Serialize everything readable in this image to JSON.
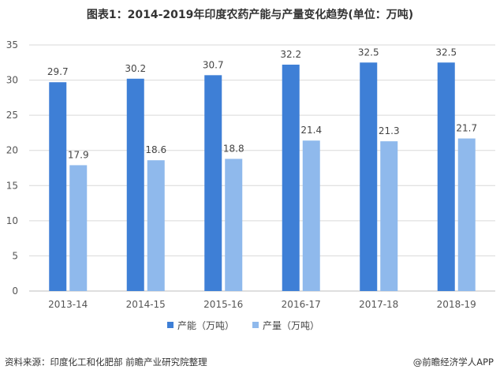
{
  "title": "图表1：2014-2019年印度农药产能与产量变化趋势(单位：万吨)",
  "footer": {
    "source": "资料来源：印度化工和化肥部 前瞻产业研究院整理",
    "brand": "@前瞻经济学人APP"
  },
  "colors": {
    "capacity": "#3e7fd6",
    "output": "#8fb9ec",
    "grid": "#d9d9d9",
    "axis": "#bfbfbf"
  },
  "chart_data": {
    "type": "bar",
    "categories": [
      "2013-14",
      "2014-15",
      "2015-16",
      "2016-17",
      "2017-18",
      "2018-19"
    ],
    "series": [
      {
        "name": "产能（万吨）",
        "values": [
          29.7,
          30.2,
          30.7,
          32.2,
          32.5,
          32.5
        ]
      },
      {
        "name": "产量（万吨）",
        "values": [
          17.9,
          18.6,
          18.8,
          21.4,
          21.3,
          21.7
        ]
      }
    ],
    "yticks": [
      0,
      5,
      10,
      15,
      20,
      25,
      30,
      35
    ],
    "ylim": [
      0,
      35
    ],
    "grid": true,
    "legend": "bottom-center"
  }
}
